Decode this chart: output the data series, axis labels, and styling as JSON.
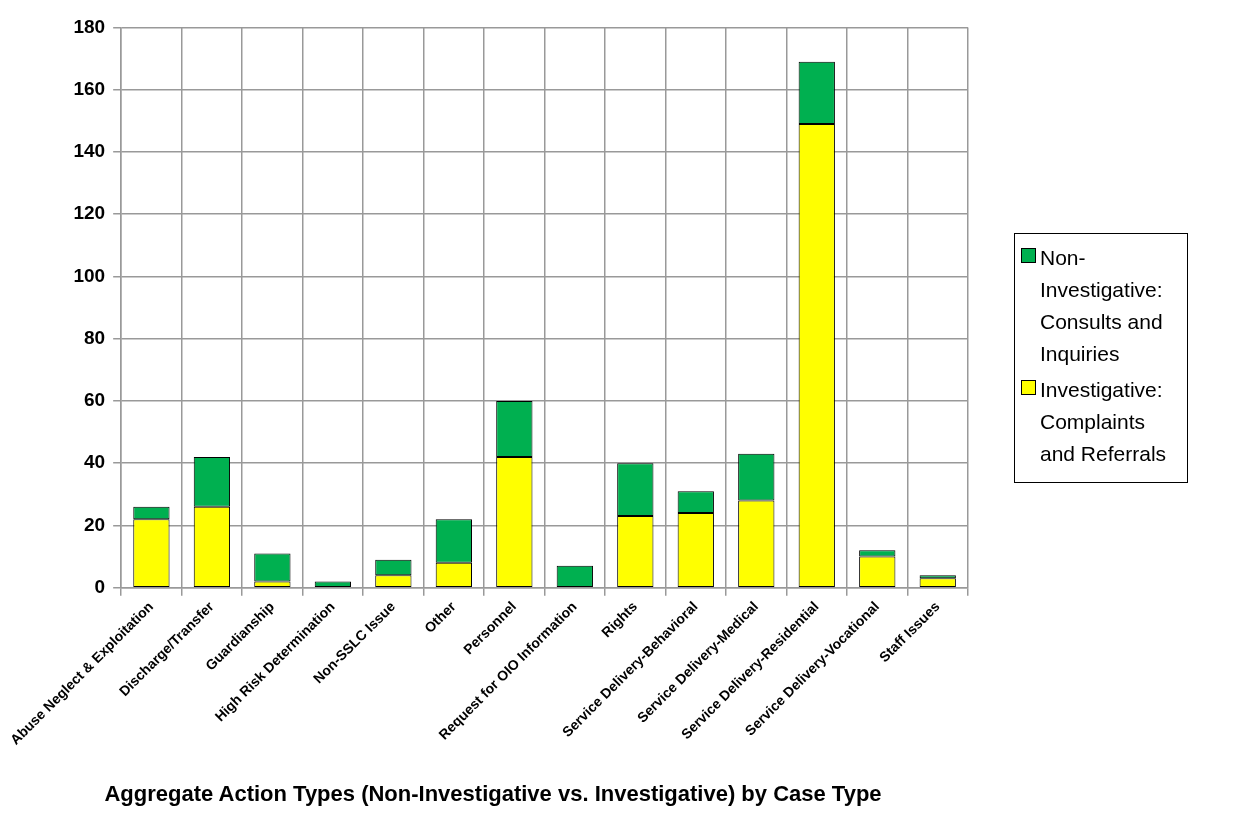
{
  "chart_data": {
    "type": "bar",
    "title": "Aggregate Action Types (Non-Investigative vs. Investigative) by Case Type",
    "categories": [
      "Abuse Neglect & Exploitation",
      "Discharge/Transfer",
      "Guardianship",
      "High Risk Determination",
      "Non-SSLC Issue",
      "Other",
      "Personnel",
      "Request for OIO Information",
      "Rights",
      "Service Delivery-Behavioral",
      "Service Delivery-Medical",
      "Service Delivery-Residential",
      "Service Delivery-Vocational",
      "Staff Issues"
    ],
    "series": [
      {
        "name": "Investigative: Complaints and Referrals",
        "color": "#ffff00",
        "values": [
          22,
          26,
          2,
          0,
          4,
          8,
          42,
          0,
          23,
          24,
          28,
          149,
          10,
          3
        ]
      },
      {
        "name": "Non-Investigative: Consults and Inquiries",
        "color": "#00b050",
        "values": [
          4,
          16,
          9,
          2,
          5,
          14,
          18,
          7,
          17,
          7,
          15,
          20,
          2,
          1
        ]
      }
    ],
    "stacked": true,
    "ylim": [
      0,
      180
    ],
    "yticks": [
      0,
      20,
      40,
      60,
      80,
      100,
      120,
      140,
      160,
      180
    ],
    "grid": true,
    "legend": "right"
  }
}
